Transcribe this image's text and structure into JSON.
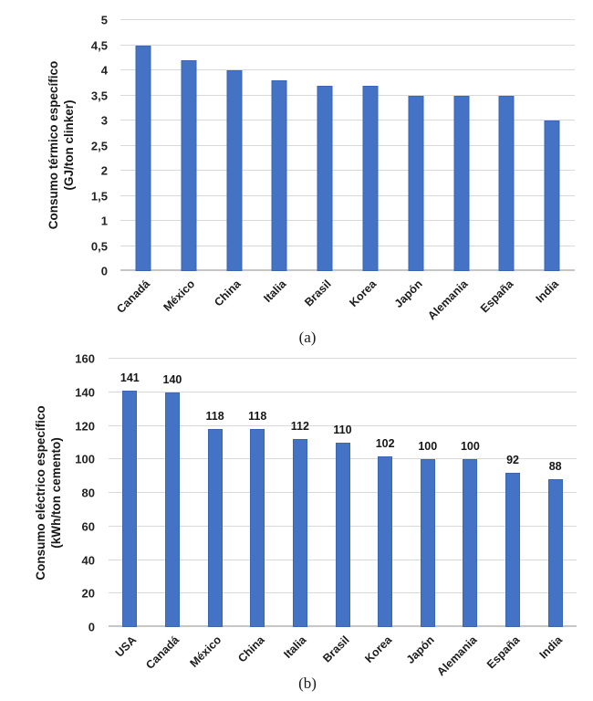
{
  "page": {
    "background": "#ffffff",
    "text_color": "#1f1f1f",
    "gridline_color": "#d9d9d9",
    "axis_line_color": "#c6c6c6"
  },
  "chart_data": [
    {
      "type": "bar",
      "caption": "(a)",
      "ylabel_line1": "Consumo térmico específico",
      "ylabel_line2": "(GJ/ton clinker)",
      "categories": [
        "Canadá",
        "México",
        "China",
        "Italia",
        "Brasil",
        "Korea",
        "Japón",
        "Alemania",
        "España",
        "India"
      ],
      "values": [
        4.5,
        4.2,
        4.0,
        3.8,
        3.7,
        3.7,
        3.5,
        3.5,
        3.5,
        3.0
      ],
      "ylim": [
        0,
        5
      ],
      "ytick_step": 0.5,
      "ytick_labels": [
        "0",
        "0,5",
        "1",
        "1,5",
        "2",
        "2,5",
        "3",
        "3,5",
        "4",
        "4,5",
        "5"
      ],
      "grid": true,
      "legend": "none",
      "bar_color": "#4472C4",
      "show_value_labels": false
    },
    {
      "type": "bar",
      "caption": "(b)",
      "ylabel_line1": "Consumo eléctrico específico",
      "ylabel_line2": "(kWh/ton cemento)",
      "categories": [
        "USA",
        "Canadá",
        "México",
        "China",
        "Italia",
        "Brasil",
        "Korea",
        "Japón",
        "Alemania",
        "España",
        "India"
      ],
      "values": [
        141,
        140,
        118,
        118,
        112,
        110,
        102,
        100,
        100,
        92,
        88
      ],
      "value_labels": [
        "141",
        "140",
        "118",
        "118",
        "112",
        "110",
        "102",
        "100",
        "100",
        "92",
        "88"
      ],
      "ylim": [
        0,
        160
      ],
      "ytick_step": 20,
      "ytick_labels": [
        "0",
        "20",
        "40",
        "60",
        "80",
        "100",
        "120",
        "140",
        "160"
      ],
      "grid": true,
      "legend": "none",
      "bar_color": "#4472C4",
      "show_value_labels": true
    }
  ]
}
